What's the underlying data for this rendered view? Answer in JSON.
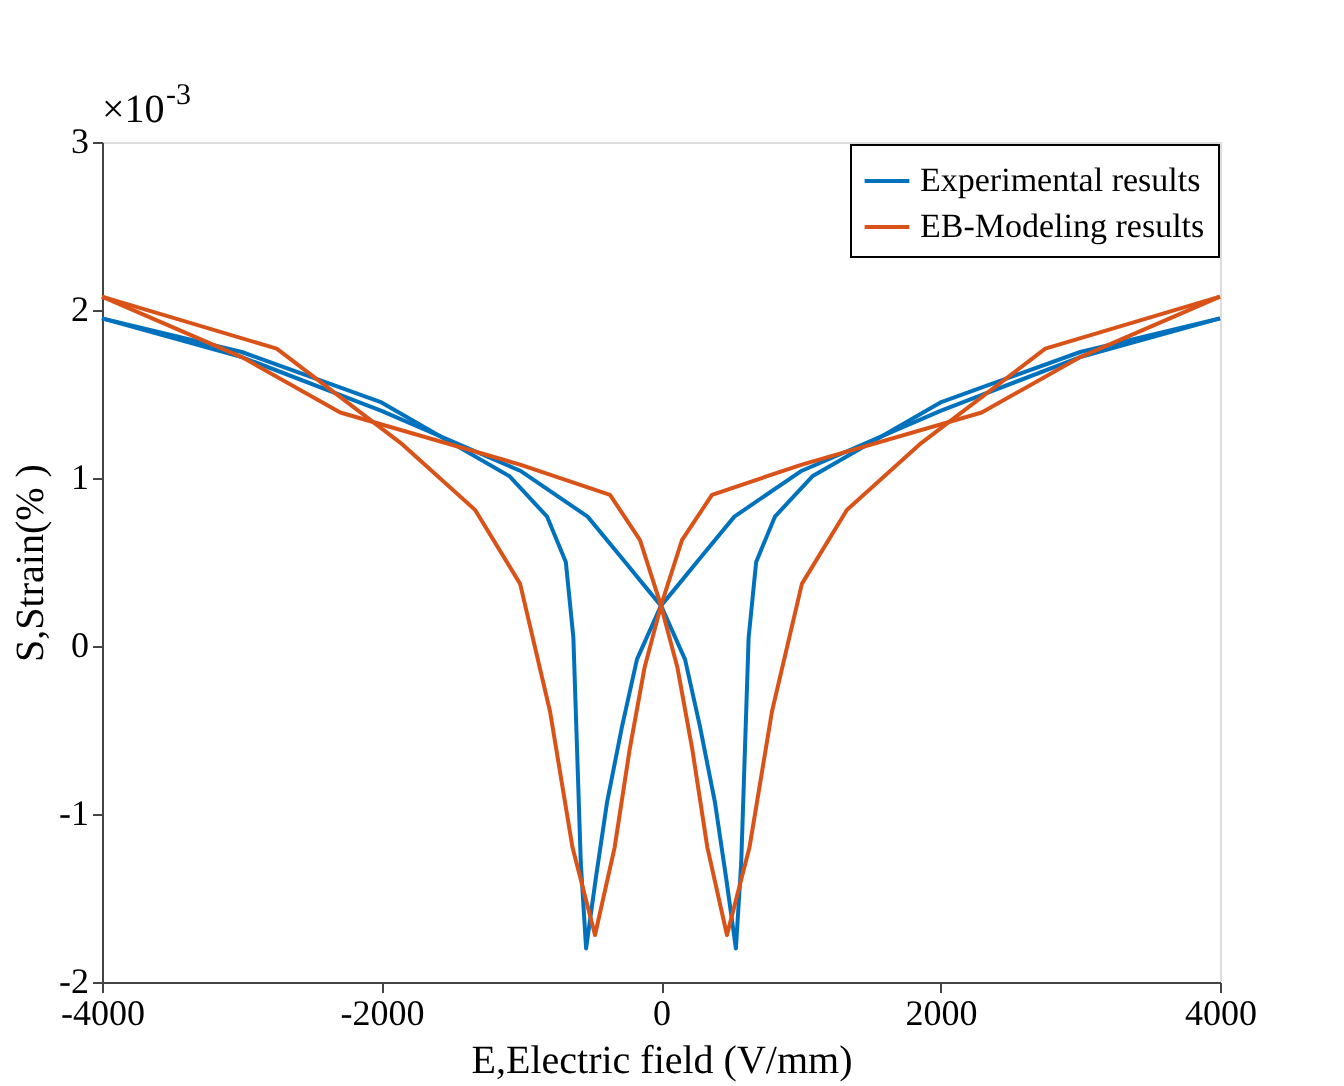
{
  "chart_data": {
    "type": "line",
    "xlabel": "E,Electric field (V/mm)",
    "ylabel": "S,Strain(% )",
    "annotations": [
      "×10$^{-3}$"
    ],
    "xlim": [
      -4000,
      4000
    ],
    "xticks": [
      -4000,
      -2000,
      0,
      2000,
      4000
    ],
    "ylim": [
      -2,
      3
    ],
    "yticks": [
      -2,
      -1,
      0,
      1,
      2,
      3
    ],
    "grid": false,
    "legend": "top right",
    "line_style": "solid",
    "marker": "none",
    "series": [
      {
        "name": "Experimental results",
        "color": "#0072bd",
        "x": [
          4000,
          3000,
          2000,
          1000,
          525,
          257,
          100,
          0,
          -172,
          -279,
          -386,
          -466,
          -536,
          -574,
          -627,
          -681,
          -815,
          -1083,
          -2000,
          -3000,
          -4000,
          -3000,
          -2000,
          -1000,
          -525,
          -257,
          -100,
          0,
          172,
          279,
          386,
          466,
          536,
          574,
          627,
          681,
          815,
          1083,
          2000,
          3000,
          4000
        ],
        "values": [
          1.95,
          1.72,
          1.4,
          1.04,
          0.77,
          0.5,
          0.34,
          0.24,
          -0.08,
          -0.48,
          -0.93,
          -1.38,
          -1.8,
          -1.29,
          0.05,
          0.5,
          0.77,
          1.01,
          1.45,
          1.75,
          1.95,
          1.72,
          1.4,
          1.04,
          0.77,
          0.5,
          0.34,
          0.24,
          -0.08,
          -0.48,
          -0.93,
          -1.38,
          -1.8,
          -1.29,
          0.05,
          0.5,
          0.77,
          1.01,
          1.45,
          1.75,
          1.95
        ]
      },
      {
        "name": "EB-Modeling results",
        "color": "#d95319",
        "x": [
          4000,
          3000,
          2295,
          1008,
          365,
          150,
          0,
          -118,
          -225,
          -332,
          -472,
          -633,
          -794,
          -1008,
          -1330,
          -1850,
          -2750,
          -4000,
          -3000,
          -2295,
          -1008,
          -365,
          -150,
          0,
          118,
          225,
          332,
          472,
          633,
          794,
          1008,
          1330,
          1850,
          2750,
          4000
        ],
        "values": [
          2.08,
          1.72,
          1.39,
          1.08,
          0.9,
          0.63,
          0.24,
          -0.13,
          -0.62,
          -1.2,
          -1.72,
          -1.2,
          -0.39,
          0.37,
          0.81,
          1.2,
          1.77,
          2.08,
          1.72,
          1.39,
          1.08,
          0.9,
          0.63,
          0.24,
          -0.13,
          -0.62,
          -1.2,
          -1.72,
          -1.2,
          -0.39,
          0.37,
          0.81,
          1.2,
          1.77,
          2.08
        ]
      }
    ]
  }
}
